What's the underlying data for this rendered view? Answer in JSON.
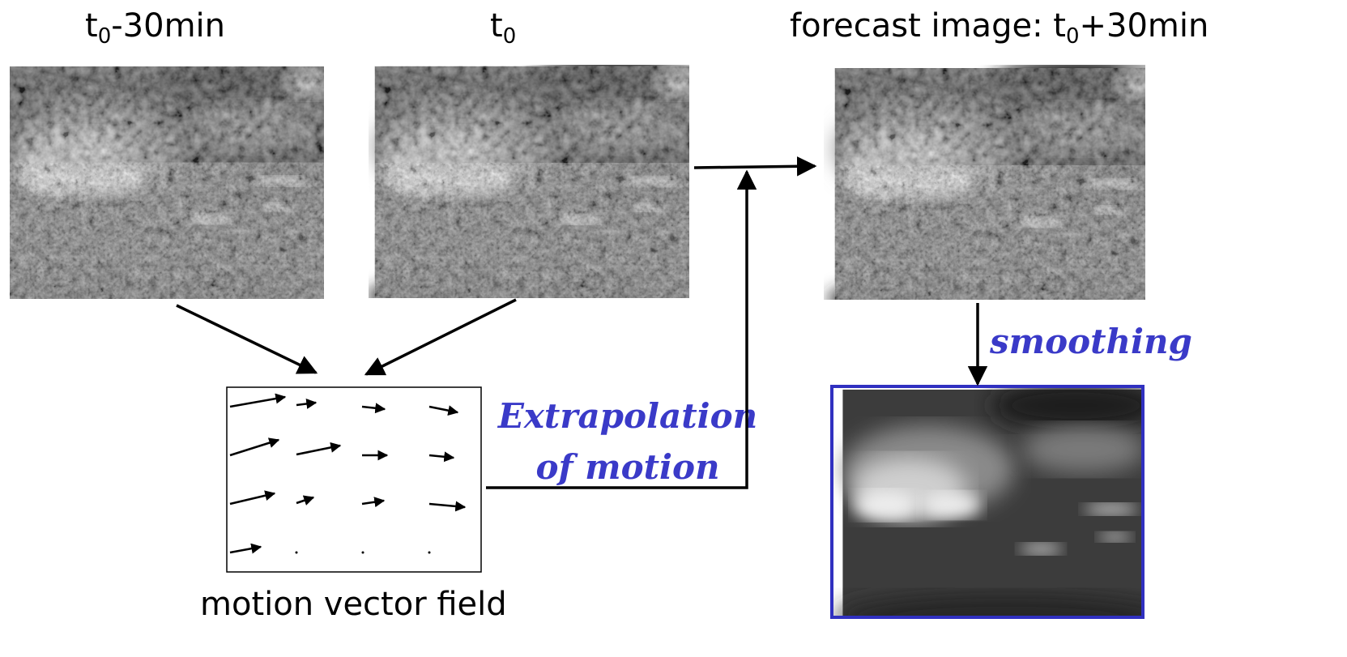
{
  "labels": {
    "past_frame": {
      "base": "t",
      "subscript": "0",
      "suffix": "-30min"
    },
    "current_frame": {
      "base": "t",
      "subscript": "0",
      "suffix": ""
    },
    "forecast_frame": {
      "prefix": "forecast image: t",
      "subscript": "0",
      "suffix": "+30min"
    },
    "motion_field": "motion vector field",
    "extrapolation_line1": "Extrapolation",
    "extrapolation_line2": "of motion",
    "smoothing": "smoothing"
  },
  "colors": {
    "accent_blue": "#3a3ac8",
    "arrow": "#000000",
    "image_border_blue": "#3030c0"
  },
  "images": [
    {
      "name": "satellite-image-t0-minus-30",
      "kind": "grayscale satellite cloud image"
    },
    {
      "name": "satellite-image-t0",
      "kind": "grayscale satellite cloud image"
    },
    {
      "name": "satellite-image-forecast",
      "kind": "grayscale satellite cloud image"
    },
    {
      "name": "satellite-image-smoothed",
      "kind": "blurred grayscale satellite cloud image"
    }
  ]
}
